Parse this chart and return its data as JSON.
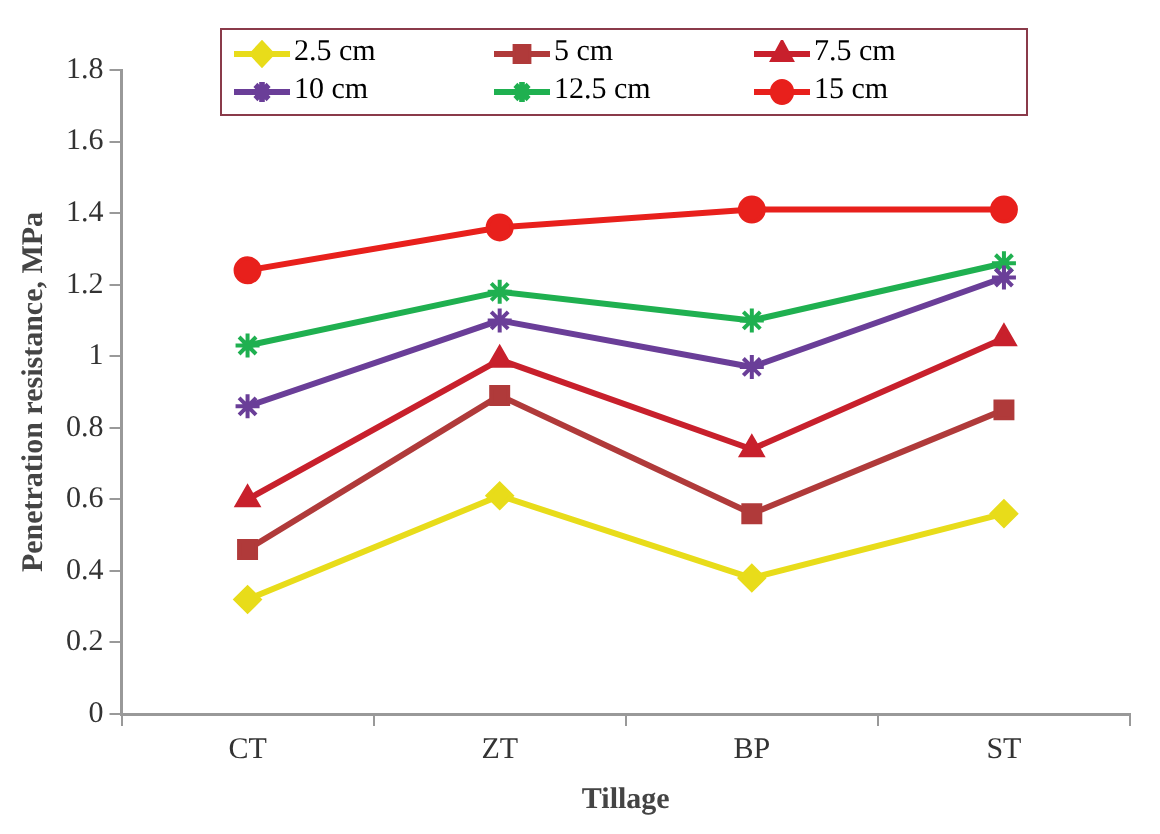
{
  "chart_data": {
    "type": "line",
    "xlabel": "Tillage",
    "ylabel": "Penetration resistance, MPa",
    "categories": [
      "CT",
      "ZT",
      "BP",
      "ST"
    ],
    "series": [
      {
        "name": "2.5 cm",
        "color": "#e8dc1a",
        "marker": "diamond",
        "values": [
          0.32,
          0.61,
          0.38,
          0.56
        ]
      },
      {
        "name": "5 cm",
        "color": "#b03a3a",
        "marker": "square",
        "values": [
          0.46,
          0.89,
          0.56,
          0.85
        ]
      },
      {
        "name": "7.5 cm",
        "color": "#c8202c",
        "marker": "triangle",
        "values": [
          0.6,
          0.99,
          0.74,
          1.05
        ]
      },
      {
        "name": "10 cm",
        "color": "#6a3e98",
        "marker": "cross",
        "values": [
          0.86,
          1.1,
          0.97,
          1.22
        ]
      },
      {
        "name": "12.5 cm",
        "color": "#1fb050",
        "marker": "cross",
        "values": [
          1.03,
          1.18,
          1.1,
          1.26
        ]
      },
      {
        "name": "15 cm",
        "color": "#e8201c",
        "marker": "circle",
        "values": [
          1.24,
          1.36,
          1.41,
          1.41
        ]
      }
    ],
    "ylim": [
      0,
      1.8
    ],
    "yticks": [
      0,
      0.2,
      0.4,
      0.6,
      0.8,
      1,
      1.2,
      1.4,
      1.6,
      1.8
    ],
    "grid": false,
    "legend": "top",
    "line_style": "solid"
  }
}
